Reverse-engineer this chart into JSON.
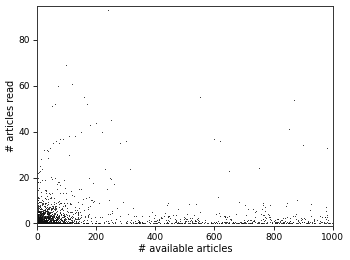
{
  "xlabel": "# available articles",
  "ylabel": "# articles read",
  "xlim": [
    0,
    1000
  ],
  "ylim": [
    -1,
    95
  ],
  "xticks": [
    0,
    200,
    400,
    600,
    800,
    1000
  ],
  "yticks": [
    0,
    20,
    40,
    60,
    80
  ],
  "marker": ".",
  "marker_color": "#111111",
  "marker_size": 1.5,
  "background_color": "#ffffff",
  "seed": 42,
  "label_fontsize": 7,
  "tick_fontsize": 6.5,
  "special_points": [
    [
      240,
      93
    ],
    [
      100,
      69
    ],
    [
      70,
      60
    ],
    [
      120,
      61
    ],
    [
      50,
      51
    ],
    [
      60,
      52
    ],
    [
      160,
      55
    ],
    [
      170,
      52
    ],
    [
      550,
      55
    ],
    [
      870,
      54
    ],
    [
      850,
      41
    ],
    [
      600,
      37
    ],
    [
      620,
      36
    ],
    [
      650,
      23
    ],
    [
      750,
      24
    ],
    [
      900,
      34
    ],
    [
      980,
      33
    ],
    [
      250,
      45
    ],
    [
      200,
      44
    ],
    [
      180,
      43
    ],
    [
      300,
      36
    ],
    [
      280,
      35
    ],
    [
      220,
      40
    ],
    [
      150,
      40
    ],
    [
      130,
      38
    ],
    [
      110,
      38
    ],
    [
      90,
      37
    ],
    [
      80,
      37
    ],
    [
      75,
      35
    ],
    [
      65,
      36
    ],
    [
      55,
      35
    ],
    [
      45,
      33
    ],
    [
      35,
      32
    ],
    [
      25,
      32
    ],
    [
      15,
      28
    ],
    [
      10,
      25
    ],
    [
      5,
      20
    ]
  ]
}
